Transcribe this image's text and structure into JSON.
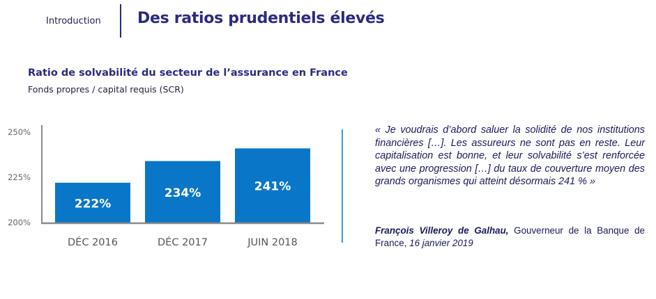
{
  "header": {
    "section_label": "Introduction",
    "title": "Des ratios prudentiels élevés"
  },
  "chart_data": {
    "type": "bar",
    "title": "Ratio de solvabilité du secteur de l’assurance en France",
    "subtitle": "Fonds propres / capital requis (SCR)",
    "categories": [
      "DÉC 2016",
      "DÉC 2017",
      "JUIN 2018"
    ],
    "values": [
      222,
      234,
      241
    ],
    "data_labels": [
      "222%",
      "234%",
      "241%"
    ],
    "yticks": [
      200,
      225,
      250
    ],
    "ytick_labels": [
      "200%",
      "225%",
      "250%"
    ],
    "ylim": [
      200,
      250
    ],
    "bar_color": "#0a76c8",
    "grid": false,
    "legend": "none"
  },
  "quote": {
    "text": "« Je voudrais d’abord saluer la solidité de nos institutions financières […]. Les assureurs ne sont pas en reste. Leur capitalisation est bonne, et leur solvabilité s’est renforcée avec une progression […] du taux de couverture moyen des grands organismes qui atteint désormais 241 % »",
    "author": "François Villeroy de Galhau,",
    "role": " Gouverneur de la Banque de France, ",
    "date": "16 janvier 2019"
  },
  "colors": {
    "title": "#2b2a82",
    "accent_line": "#3a9ad6",
    "bar": "#0a76c8"
  }
}
